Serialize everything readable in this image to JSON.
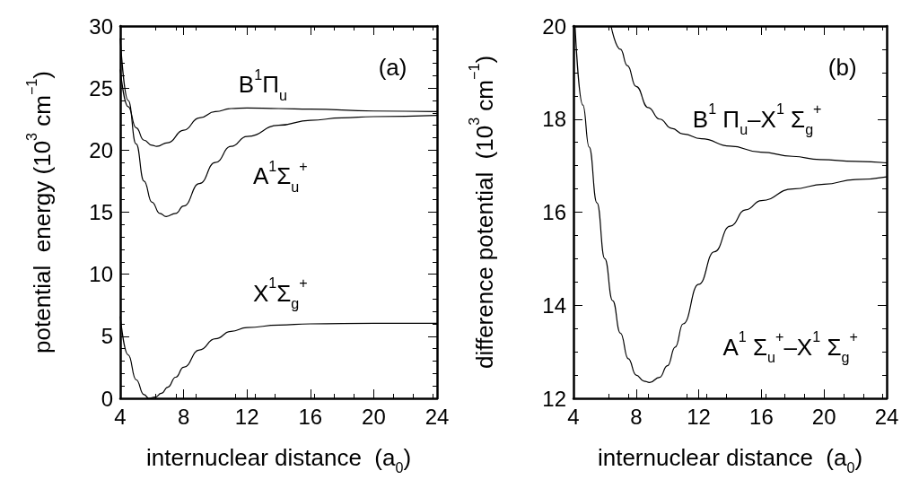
{
  "chart_data": [
    {
      "type": "line",
      "xlabel": "internuclear distance  (a$_{0}$)",
      "ylabel": "potential  energy (10$^{3}$ cm$^{−1}$)",
      "xlim": [
        4,
        24
      ],
      "xticks": [
        4,
        8,
        12,
        16,
        20,
        24
      ],
      "ylim": [
        0,
        30
      ],
      "yticks": [
        0,
        5,
        10,
        15,
        20,
        25,
        30
      ],
      "grid": false,
      "series": [
        {
          "color": "#000000",
          "x": [
            4,
            4.5,
            5,
            5.5,
            6,
            6.3,
            7,
            8,
            9,
            10,
            11,
            12,
            14,
            16,
            20,
            24
          ],
          "values": [
            26.5,
            23.5,
            21.8,
            20.8,
            20.4,
            20.3,
            20.6,
            21.6,
            22.6,
            23.1,
            23.35,
            23.4,
            23.35,
            23.3,
            23.15,
            23.1
          ]
        },
        {
          "color": "#000000",
          "x": [
            4,
            4.5,
            5,
            5.5,
            6,
            6.5,
            6.9,
            7.5,
            8,
            9,
            10,
            11,
            12,
            14,
            16,
            18,
            20,
            24
          ],
          "values": [
            29,
            24,
            20.5,
            17.5,
            15.8,
            14.9,
            14.65,
            14.9,
            15.5,
            17.3,
            19,
            20.3,
            21.1,
            22,
            22.4,
            22.6,
            22.7,
            22.8
          ]
        },
        {
          "color": "#000000",
          "x": [
            4,
            4.5,
            5,
            5.5,
            5.8,
            6.2,
            6.6,
            7,
            7.5,
            8,
            9,
            10,
            11,
            12,
            14,
            16,
            20,
            24
          ],
          "values": [
            6.6,
            3.5,
            1.5,
            0.3,
            0,
            0.1,
            0.4,
            0.9,
            1.7,
            2.5,
            3.9,
            4.8,
            5.4,
            5.7,
            5.9,
            6,
            6.05,
            6.05
          ]
        }
      ],
      "annotations": [
        "(a)",
        "B$^{1}$Π$_{u}$",
        "A$^{1}$Σ$_{u}$$^{+}$",
        "X$^{1}$Σ$_{g}$$^{+}$"
      ]
    },
    {
      "type": "line",
      "xlabel": "internuclear distance  (a$_{0}$)",
      "ylabel": "difference potential  (10$^{3}$ cm$^{−1}$)",
      "xlim": [
        4,
        24
      ],
      "xticks": [
        4,
        8,
        12,
        16,
        20,
        24
      ],
      "ylim": [
        12,
        20
      ],
      "yticks": [
        12,
        14,
        16,
        18,
        20
      ],
      "grid": false,
      "series": [
        {
          "color": "#000000",
          "x": [
            6.4,
            7,
            7.44,
            8,
            8.77,
            9.5,
            10.28,
            11,
            12.17,
            14,
            15.96,
            18,
            19.74,
            22,
            24
          ],
          "values": [
            20,
            19.5,
            19.15,
            18.7,
            18.25,
            18,
            17.8,
            17.68,
            17.58,
            17.42,
            17.29,
            17.2,
            17.13,
            17.09,
            17.06
          ]
        },
        {
          "color": "#000000",
          "x": [
            4.1,
            4.6,
            5,
            5.5,
            6,
            6.5,
            7,
            7.5,
            8,
            8.5,
            8.86,
            9.5,
            10,
            10.5,
            11,
            12,
            13,
            14,
            15,
            16,
            18,
            20,
            22,
            24
          ],
          "values": [
            20,
            18.3,
            17.4,
            16.2,
            15,
            14.1,
            13.4,
            12.85,
            12.5,
            12.37,
            12.34,
            12.45,
            12.7,
            13.1,
            13.6,
            14.45,
            15.15,
            15.7,
            16.05,
            16.25,
            16.5,
            16.6,
            16.7,
            16.76
          ]
        }
      ],
      "annotations": [
        "(b)",
        "B$^{1}$ Π$_{u}$–X$^{1}$ Σ$_{g}$$^{+}$",
        "A$^{1}$ Σ$_{u}$$^{+}$–X$^{1}$ Σ$_{g}$$^{+}$"
      ]
    }
  ]
}
